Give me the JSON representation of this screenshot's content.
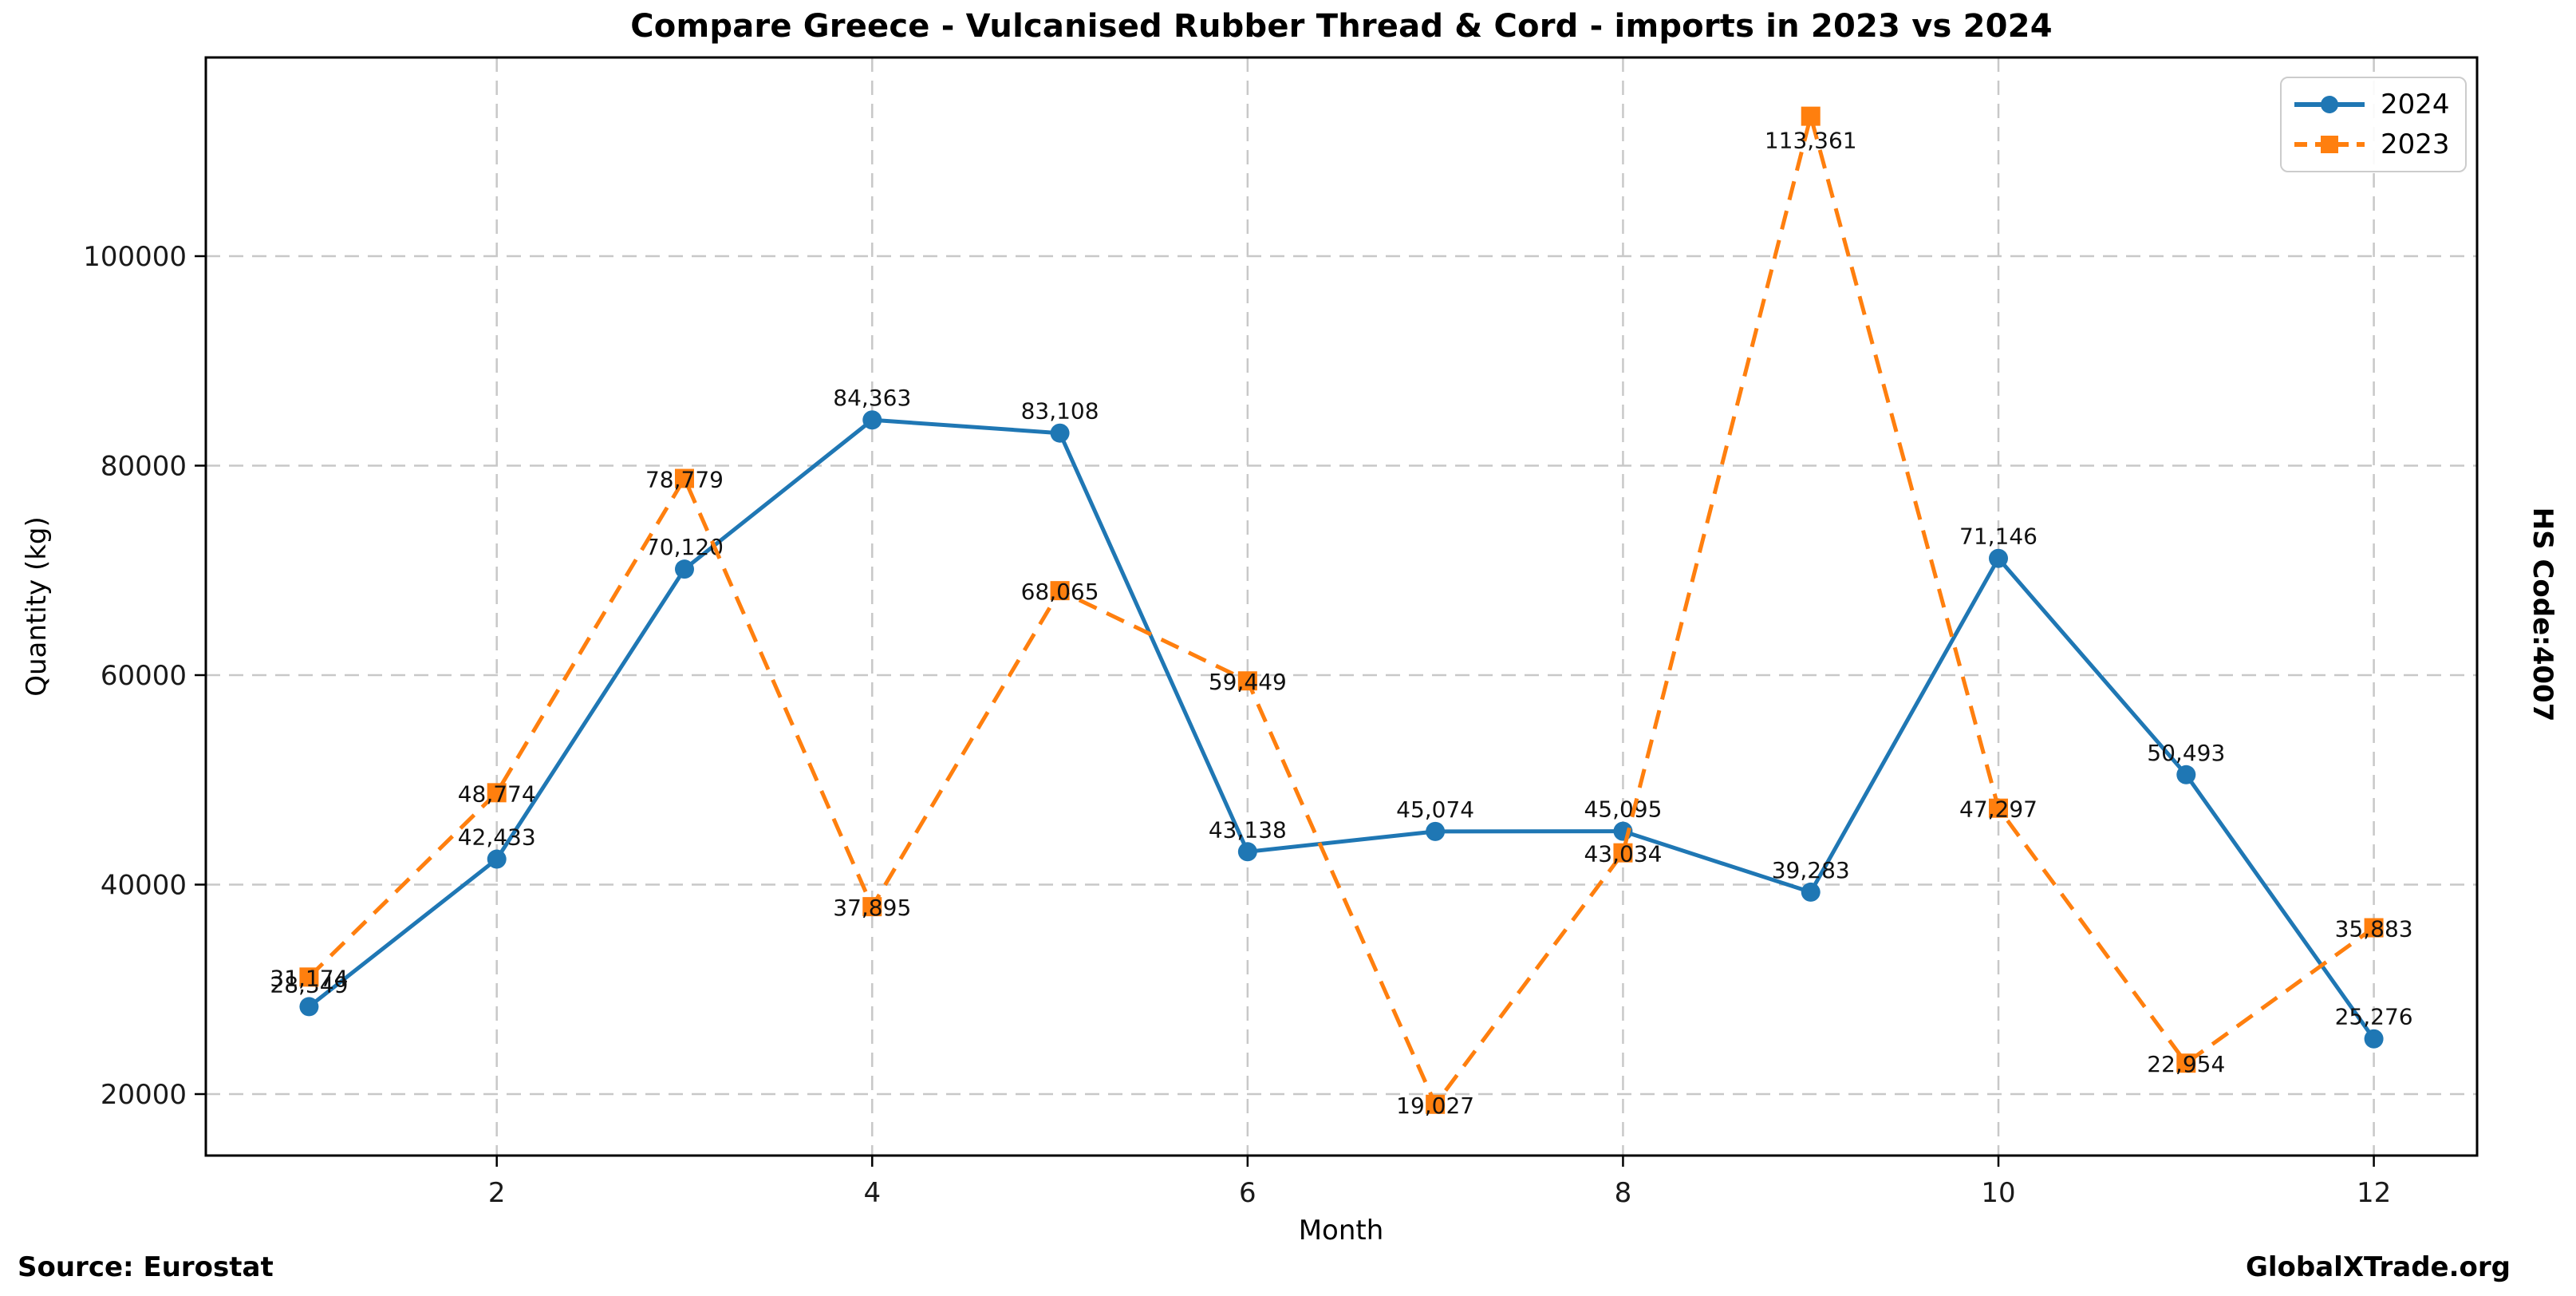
{
  "figure": {
    "title": "Compare Greece - Vulcanised Rubber Thread & Cord - imports in 2023 vs 2024",
    "source_note": "Source: Eurostat",
    "watermark": "GlobalXTrade.org",
    "right_side_label": "HS Code:4007"
  },
  "chart_data": {
    "type": "line",
    "title": "Compare Greece - Vulcanised Rubber Thread & Cord - imports in 2023 vs 2024",
    "xlabel": "Month",
    "ylabel": "Quantity (kg)",
    "x": [
      1,
      2,
      3,
      4,
      5,
      6,
      7,
      8,
      9,
      10,
      11,
      12
    ],
    "xticks": [
      2,
      4,
      6,
      8,
      10,
      12
    ],
    "yticks": [
      20000,
      40000,
      60000,
      80000,
      100000
    ],
    "xlim": [
      0.45,
      12.55
    ],
    "ylim": [
      14133,
      118971
    ],
    "grid": true,
    "grid_style": "dashed",
    "legend_position": "upper right",
    "data_labels": true,
    "series": [
      {
        "name": "2024",
        "color": "#1f77b4",
        "linestyle": "solid",
        "marker": "circle",
        "values": [
          28349,
          42433,
          70120,
          84363,
          83108,
          43138,
          45074,
          45095,
          39283,
          71146,
          50493,
          25276
        ]
      },
      {
        "name": "2023",
        "color": "#ff7f0e",
        "linestyle": "dashed",
        "marker": "square",
        "values": [
          31174,
          48774,
          78779,
          37895,
          68065,
          59449,
          19027,
          43034,
          113361,
          47297,
          22954,
          35883
        ]
      }
    ],
    "colors": {
      "grid": "#c8c8c8",
      "spine": "#000000",
      "label_text": "#111111"
    }
  }
}
